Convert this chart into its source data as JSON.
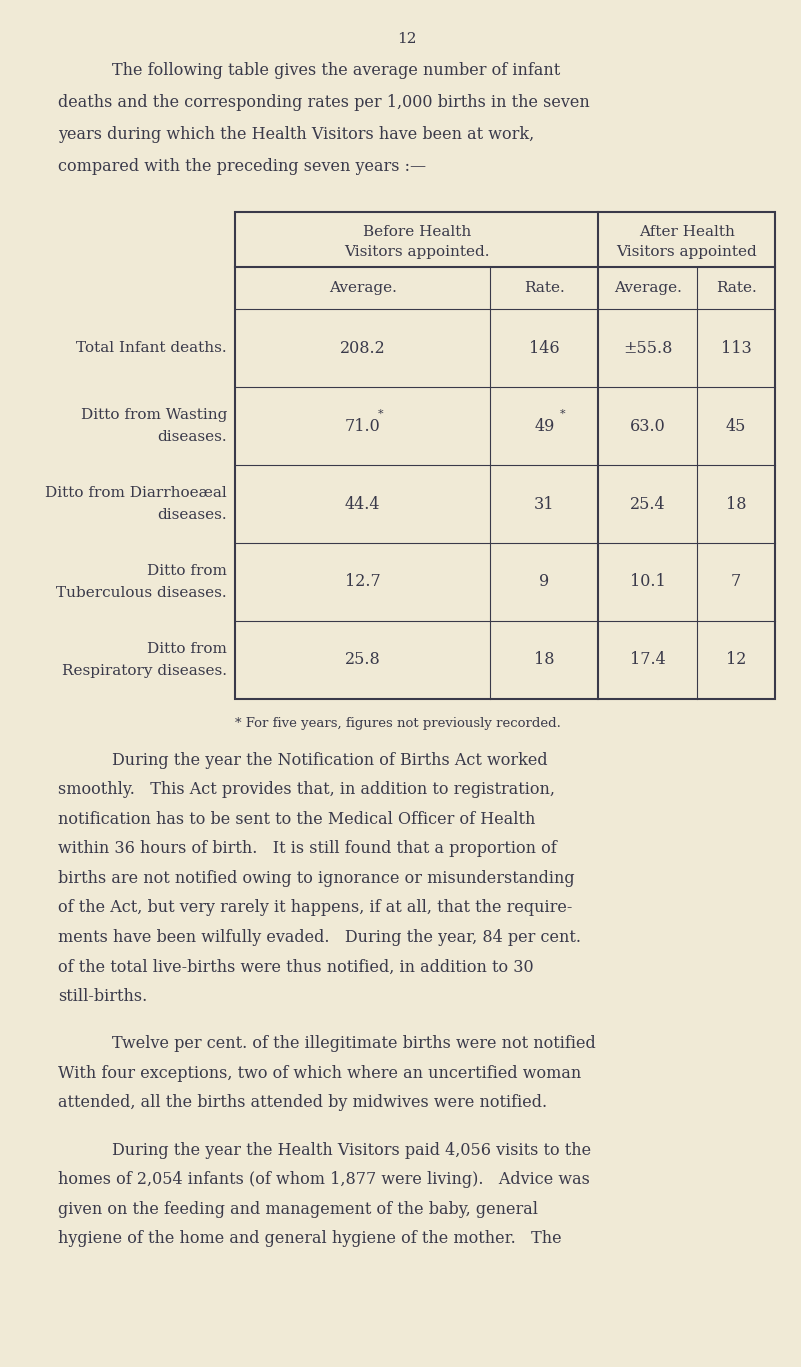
{
  "bg_color": "#f0ead6",
  "text_color": "#3a3a4a",
  "page_number": "12",
  "intro_text": [
    "The following table gives the average number of infant",
    "deaths and the corresponding rates per 1,000 births in the seven",
    "years during which the Health Visitors have been at work,",
    "compared with the preceding seven years :—"
  ],
  "table_header_row1": [
    "Before Health\nVisitors appointed.",
    "After Health\nVisitors appointed"
  ],
  "table_header_row2": [
    "Average.",
    "Rate.",
    "Average.",
    "Rate."
  ],
  "table_rows": [
    {
      "label_lines": [
        "Total Infant deaths."
      ],
      "values": [
        "208.2",
        "146",
        "±55.8",
        "113"
      ]
    },
    {
      "label_lines": [
        "Ditto from Wasting",
        "diseases."
      ],
      "values": [
        "71.0*",
        "49*",
        "63.0",
        "45"
      ]
    },
    {
      "label_lines": [
        "Ditto from Diarrhoeæal",
        "diseases."
      ],
      "values": [
        "44.4",
        "31",
        "25.4",
        "18"
      ]
    },
    {
      "label_lines": [
        "Ditto from",
        "Tuberculous diseases."
      ],
      "values": [
        "12.7",
        "9",
        "10.1",
        "7"
      ]
    },
    {
      "label_lines": [
        "Ditto from",
        "Respiratory diseases."
      ],
      "values": [
        "25.8",
        "18",
        "17.4",
        "12"
      ]
    }
  ],
  "footnote": "* For five years, figures not previously recorded.",
  "paragraphs": [
    "During the year the Notification of Births Act worked smoothly. This Act provides that, in addition to registration, notification has to be sent to the Medical Officer of Health within 36 hours of birth. It is still found that a proportion of births are not notified owing to ignorance or misunderstanding of the Act, but very rarely it happens, if at all, that the require-ments have been wilfully evaded. During the year, 84 per cent. of the total live-births were thus notified, in addition to 30 still-births.",
    "Twelve per cent. of the illegitimate births were not notified With four exceptions, two of which where an uncertified woman attended, all the births attended by midwives were notified.",
    "During the year the Health Visitors paid 4,056 visits to the homes of 2,054 infants (of whom 1,877 were living). Advice was given on the feeding and management of the baby, general hygiene of the home and general hygiene of the mother. The"
  ]
}
